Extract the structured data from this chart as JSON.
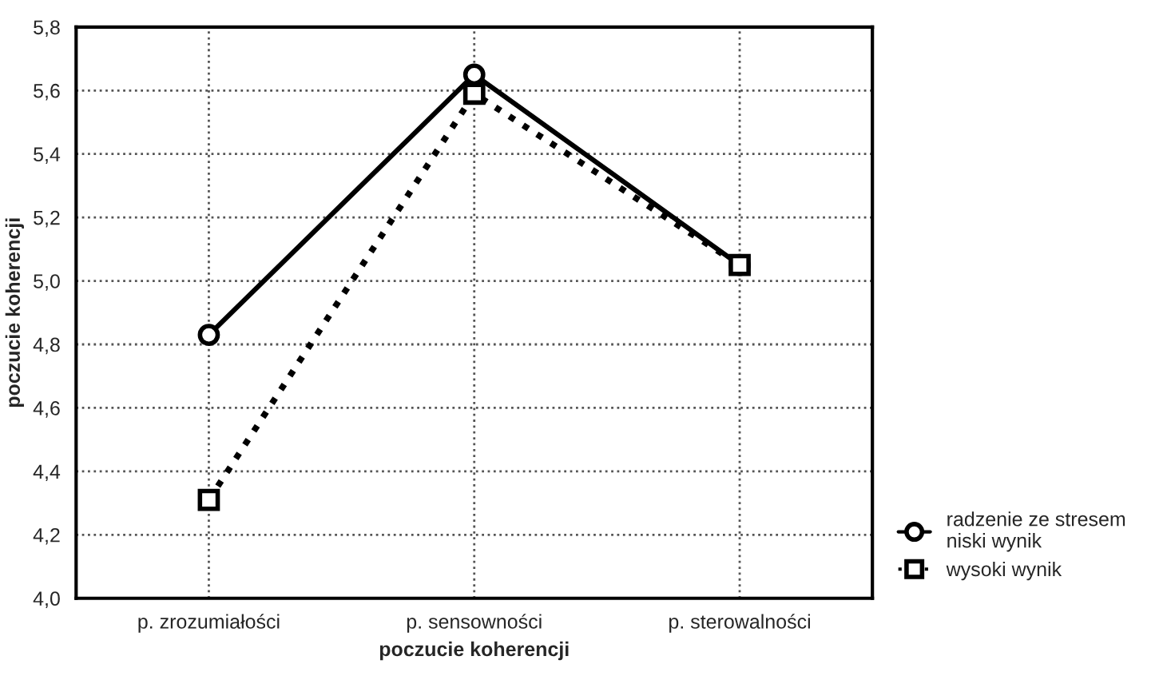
{
  "chart_data": {
    "type": "line",
    "xlabel": "poczucie koherencji",
    "ylabel": "poczucie koherencji",
    "categories": [
      "p. zrozumiałości",
      "p. sensowności",
      "p. sterowalności"
    ],
    "series": [
      {
        "name": "radzenie ze stresem\nniski wynik",
        "color": "#000000",
        "values": [
          4.83,
          5.65,
          5.05
        ],
        "marker": "circle",
        "line_style": "solid"
      },
      {
        "name": "wysoki wynik",
        "color": "#000000",
        "values": [
          4.31,
          5.59,
          5.05
        ],
        "marker": "square",
        "line_style": "dotted"
      }
    ],
    "ylim": [
      4.0,
      5.8
    ],
    "yticks": [
      {
        "value": 4.0,
        "label": "4,0"
      },
      {
        "value": 4.2,
        "label": "4,2"
      },
      {
        "value": 4.4,
        "label": "4,4"
      },
      {
        "value": 4.6,
        "label": "4,6"
      },
      {
        "value": 4.8,
        "label": "4,8"
      },
      {
        "value": 5.0,
        "label": "5,0"
      },
      {
        "value": 5.2,
        "label": "5,2"
      },
      {
        "value": 5.4,
        "label": "5,4"
      },
      {
        "value": 5.6,
        "label": "5,6"
      },
      {
        "value": 5.8,
        "label": "5,8"
      }
    ],
    "grid": true,
    "legend": "bottom right"
  }
}
